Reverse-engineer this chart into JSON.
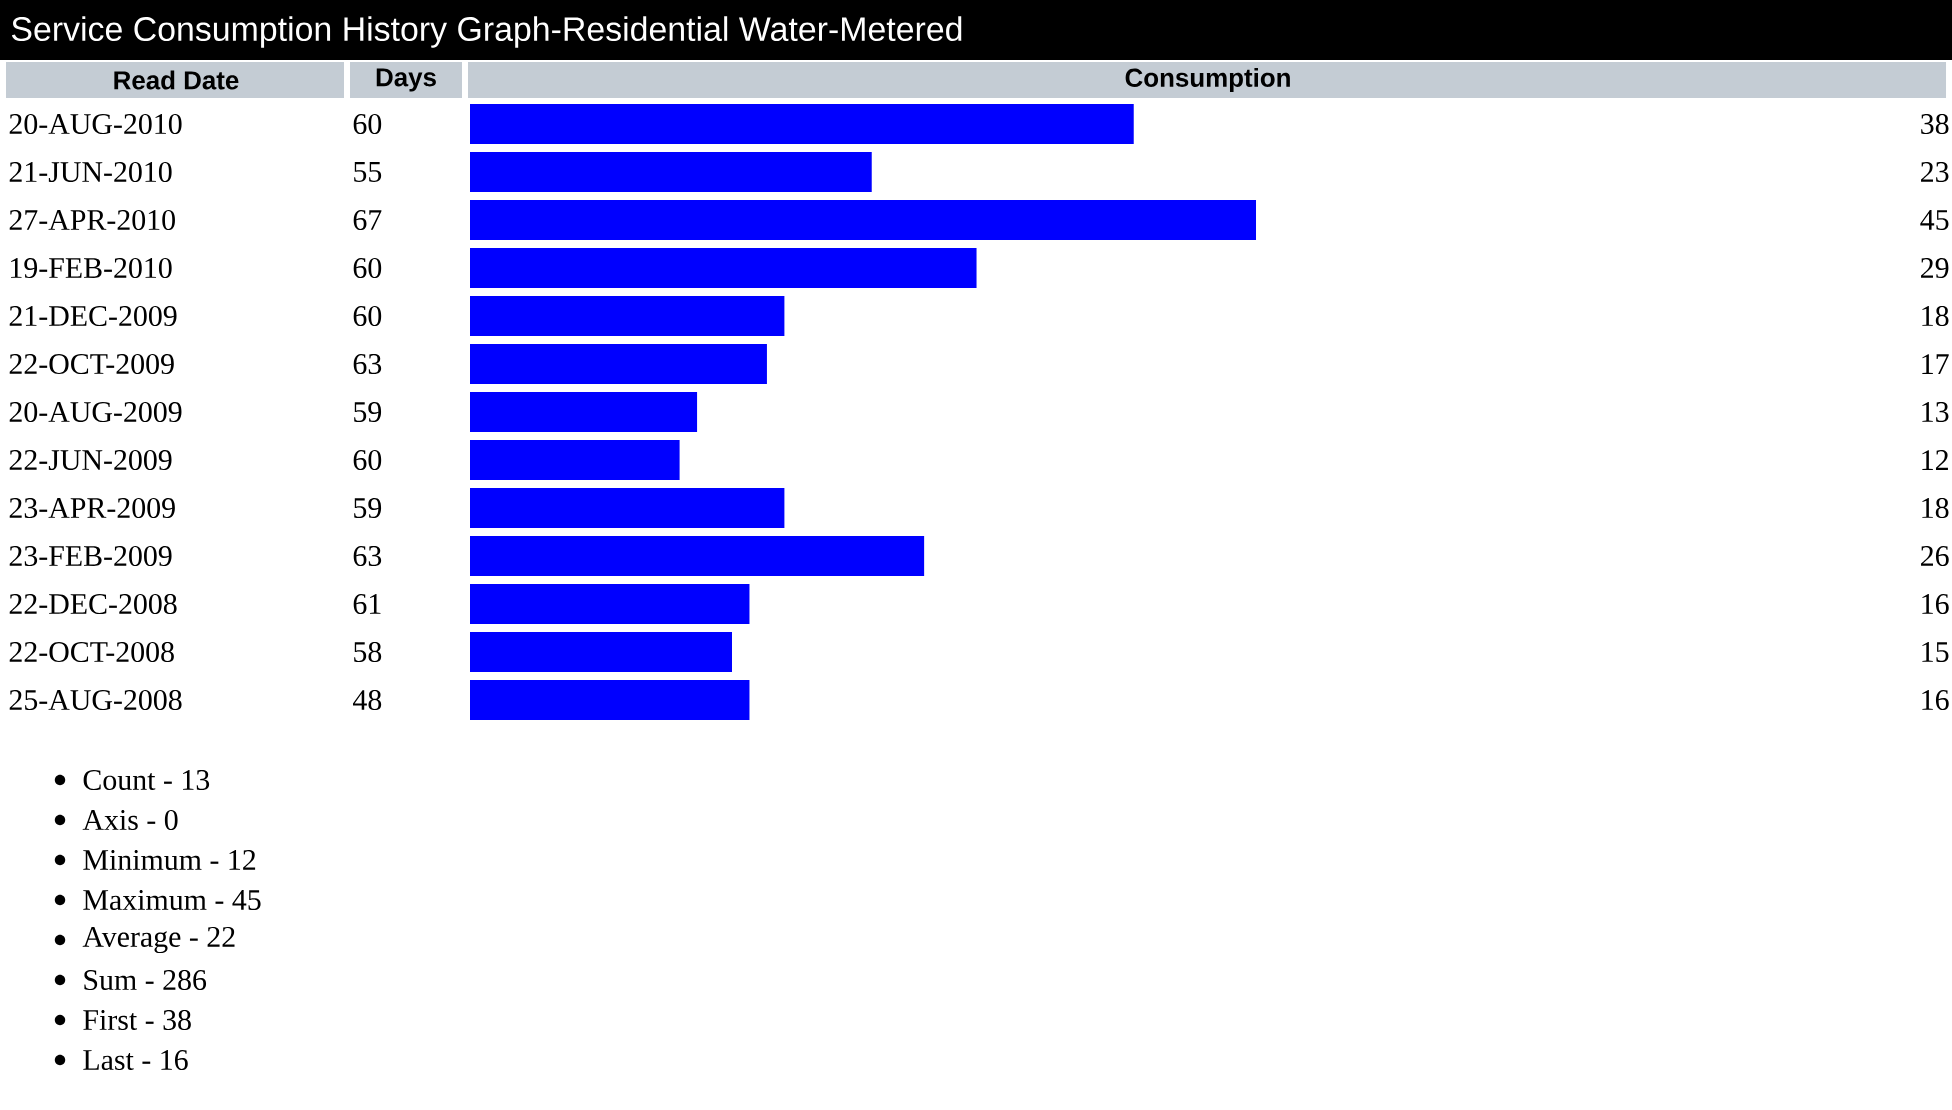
{
  "chart_data": {
    "type": "bar",
    "orientation": "horizontal",
    "title": "Service Consumption History Graph-Residential Water-Metered",
    "ylabel": "Read Date",
    "xlabel": "Consumption",
    "categories": [
      "20-AUG-2010",
      "21-JUN-2010",
      "27-APR-2010",
      "19-FEB-2010",
      "21-DEC-2009",
      "22-OCT-2009",
      "20-AUG-2009",
      "22-JUN-2009",
      "23-APR-2009",
      "23-FEB-2009",
      "22-DEC-2008",
      "22-OCT-2008",
      "25-AUG-2008"
    ],
    "values": [
      38,
      23,
      45,
      29,
      18,
      17,
      13,
      12,
      18,
      26,
      16,
      15,
      16
    ],
    "color": "#0000ff",
    "data_labels": true,
    "annotations": [
      "Days",
      "60",
      "55",
      "67",
      "60",
      "60",
      "63",
      "59",
      "60",
      "59",
      "63",
      "61",
      "58",
      "48",
      "Count - 13",
      "Axis - 0",
      "Minimum - 12",
      "Maximum - 45",
      "Average - 22",
      "Sum - 286",
      "First - 38",
      "Last - 16"
    ]
  }
}
